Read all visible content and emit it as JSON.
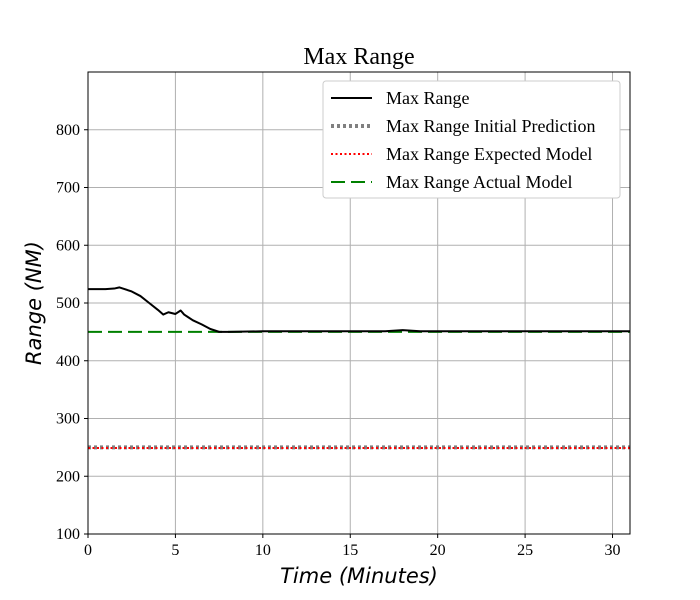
{
  "chart_data": {
    "type": "line",
    "title": "Max Range",
    "xlabel": "Time (Minutes)",
    "ylabel": "Range (NM)",
    "xlim": [
      0,
      31
    ],
    "ylim": [
      100,
      900
    ],
    "xticks": [
      0,
      5,
      10,
      15,
      20,
      25,
      30
    ],
    "yticks": [
      100,
      200,
      300,
      400,
      500,
      600,
      700,
      800
    ],
    "grid": true,
    "legend_position": "top-right",
    "series": [
      {
        "name": "Max Range",
        "style": "solid",
        "color": "#000000",
        "x": [
          0,
          0.5,
          1,
          1.5,
          1.8,
          2.0,
          2.5,
          3,
          3.5,
          4,
          4.3,
          4.6,
          5.0,
          5.3,
          5.5,
          5.7,
          6.0,
          6.5,
          7.0,
          7.5,
          8,
          10,
          15,
          17,
          18,
          19,
          20,
          25,
          31
        ],
        "y": [
          524,
          524,
          524,
          525,
          527,
          525,
          520,
          512,
          500,
          488,
          480,
          484,
          481,
          487,
          480,
          476,
          470,
          463,
          455,
          450,
          450,
          451,
          451,
          451,
          453,
          451,
          451,
          451,
          451
        ]
      },
      {
        "name": "Max Range Initial Prediction",
        "style": "dotted-thick",
        "color": "#808080",
        "x": [
          0,
          31
        ],
        "y": [
          250,
          250
        ]
      },
      {
        "name": "Max Range Expected Model",
        "style": "dotted",
        "color": "#ff0000",
        "x": [
          0,
          31
        ],
        "y": [
          249,
          249
        ]
      },
      {
        "name": "Max Range Actual Model",
        "style": "dashed",
        "color": "#008000",
        "x": [
          0,
          31
        ],
        "y": [
          450,
          450
        ]
      }
    ]
  }
}
